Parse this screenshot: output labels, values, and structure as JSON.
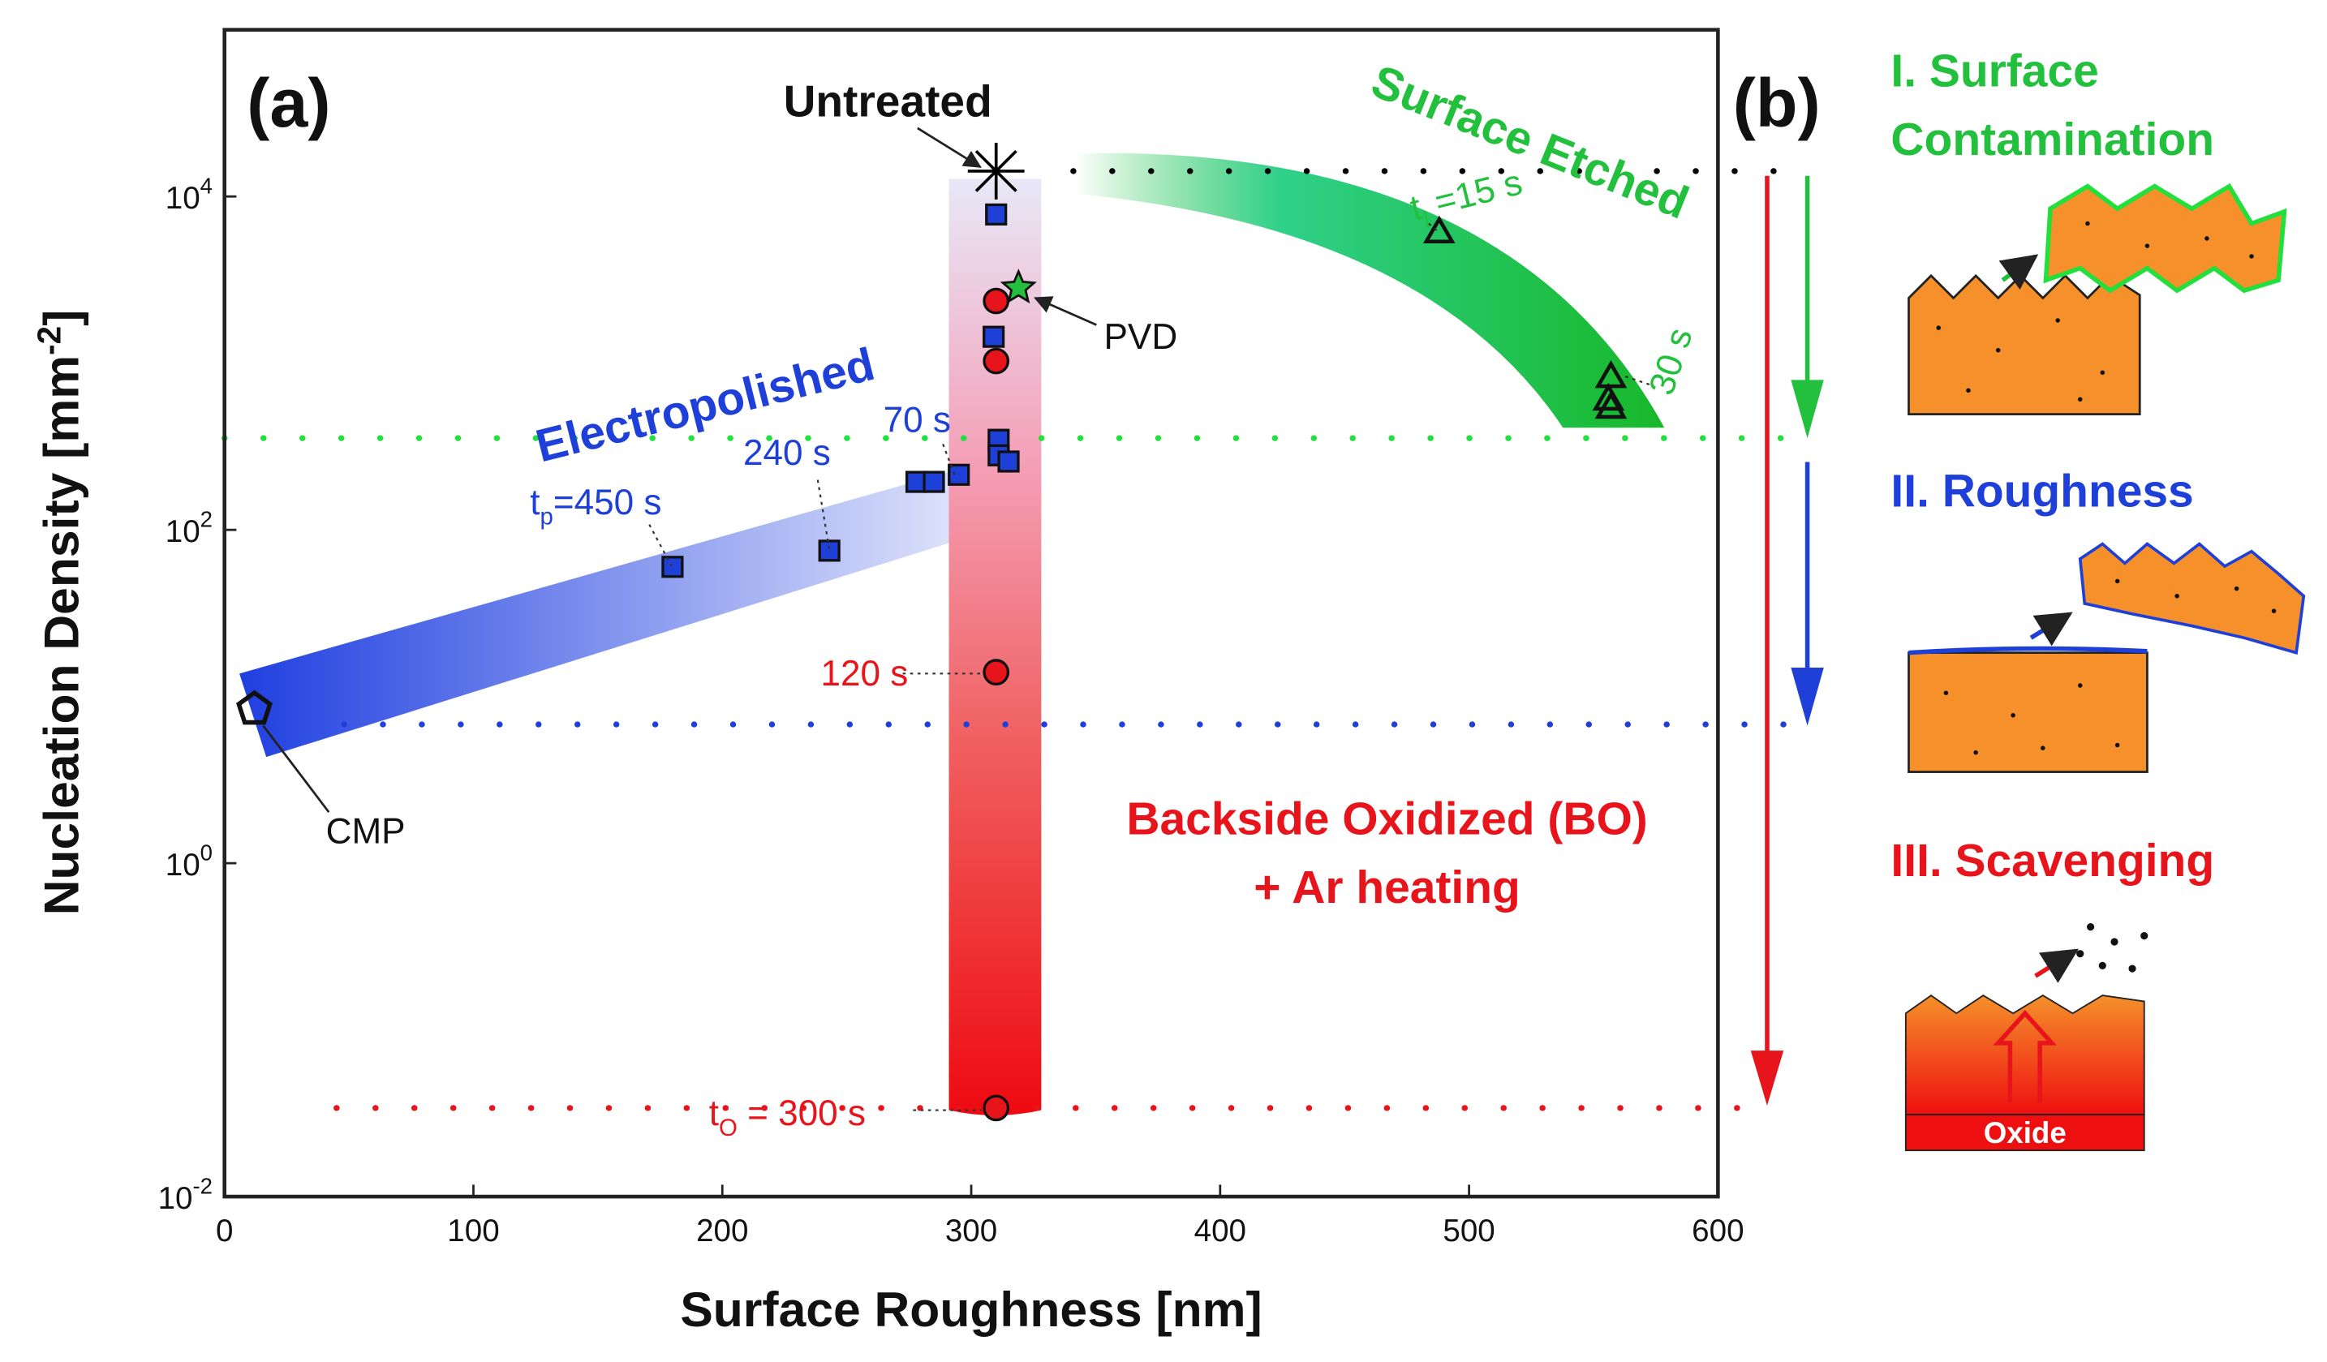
{
  "chart_data": {
    "type": "scatter",
    "panel_labels": [
      "(a)",
      "(b)"
    ],
    "xlabel": "Surface Roughness [nm]",
    "ylabel": {
      "text": "Nucleation Density [mm",
      "sup": "-2",
      "end": "]"
    },
    "xlim": [
      0,
      600
    ],
    "xticks": [
      0,
      100,
      200,
      300,
      400,
      500,
      600
    ],
    "ylim": [
      0.01,
      100000
    ],
    "yscale": "log",
    "yticks": [
      {
        "value": 0.01,
        "label": "10",
        "exponent": "-2"
      },
      {
        "value": 1,
        "label": "10",
        "exponent": "0"
      },
      {
        "value": 100,
        "label": "10",
        "exponent": "2"
      },
      {
        "value": 10000,
        "label": "10",
        "exponent": "4"
      }
    ],
    "series": [
      {
        "marker": "square",
        "color": "#1f3fd9",
        "x": [
          180,
          243,
          278,
          285,
          295,
          310,
          309,
          311,
          311,
          315
        ],
        "y": [
          60,
          75,
          194,
          194,
          214,
          7800,
          1440,
          347,
          280,
          257
        ]
      },
      {
        "marker": "circle",
        "color": "#e8141b",
        "x": [
          310,
          310,
          310,
          310
        ],
        "y": [
          2360,
          1030,
          14,
          0.034
        ]
      },
      {
        "marker": "triangle",
        "color": "none",
        "x": [
          488,
          557,
          556,
          557
        ],
        "y": [
          6200,
          840,
          615,
          550
        ]
      },
      {
        "marker": "star",
        "color": "#22c03c",
        "name": "PVD",
        "x": [
          319
        ],
        "y": [
          2830
        ]
      },
      {
        "marker": "pentagon",
        "color": "none",
        "name": "CMP",
        "x": [
          12
        ],
        "y": [
          8.4
        ]
      },
      {
        "marker": "asterisk",
        "color": "#000000",
        "name": "Untreated",
        "x": [
          310
        ],
        "y": [
          14200
        ]
      }
    ],
    "reference_lines": [
      {
        "color": "#000000",
        "y": 14200,
        "x": [
          341,
          637
        ]
      },
      {
        "color": "#22e03c",
        "y": 355,
        "x": [
          0,
          637
        ]
      },
      {
        "color": "#1f3fd9",
        "y": 6.8,
        "x": [
          48,
          637
        ]
      },
      {
        "color": "#e8141b",
        "y": 0.034,
        "x": [
          45,
          623
        ]
      }
    ],
    "annotations": [
      {
        "text": "Electropolished",
        "color": "#1f3fd9"
      },
      {
        "text": "Surface Etched",
        "color": "#22c03c"
      },
      {
        "text": "Backside Oxidized (BO)",
        "color": "#e8141b"
      },
      {
        "text": "+ Ar heating",
        "color": "#e8141b"
      },
      {
        "prefix": "t",
        "sub": "p",
        "text": "=450 s",
        "color": "#1f3fd9"
      },
      {
        "text": "240 s",
        "color": "#1f3fd9"
      },
      {
        "text": "70 s",
        "color": "#1f3fd9"
      },
      {
        "text": "120 s",
        "color": "#e8141b"
      },
      {
        "prefix": "t",
        "sub": "O",
        "text": " = 300 s",
        "color": "#e8141b"
      },
      {
        "prefix": "t",
        "sub": "l",
        "text": " =15 s",
        "color": "#22c03c"
      },
      {
        "text": "30 s",
        "color": "#22c03c"
      }
    ]
  },
  "panel_b": {
    "steps": [
      {
        "lines": [
          "I. Surface",
          "Contamination"
        ],
        "color": "#22c03c"
      },
      {
        "lines": [
          "II. Roughness"
        ],
        "color": "#1f3fd9"
      },
      {
        "lines": [
          "III. Scavenging"
        ],
        "color": "#e8141b"
      }
    ],
    "oxide": "Oxide"
  }
}
